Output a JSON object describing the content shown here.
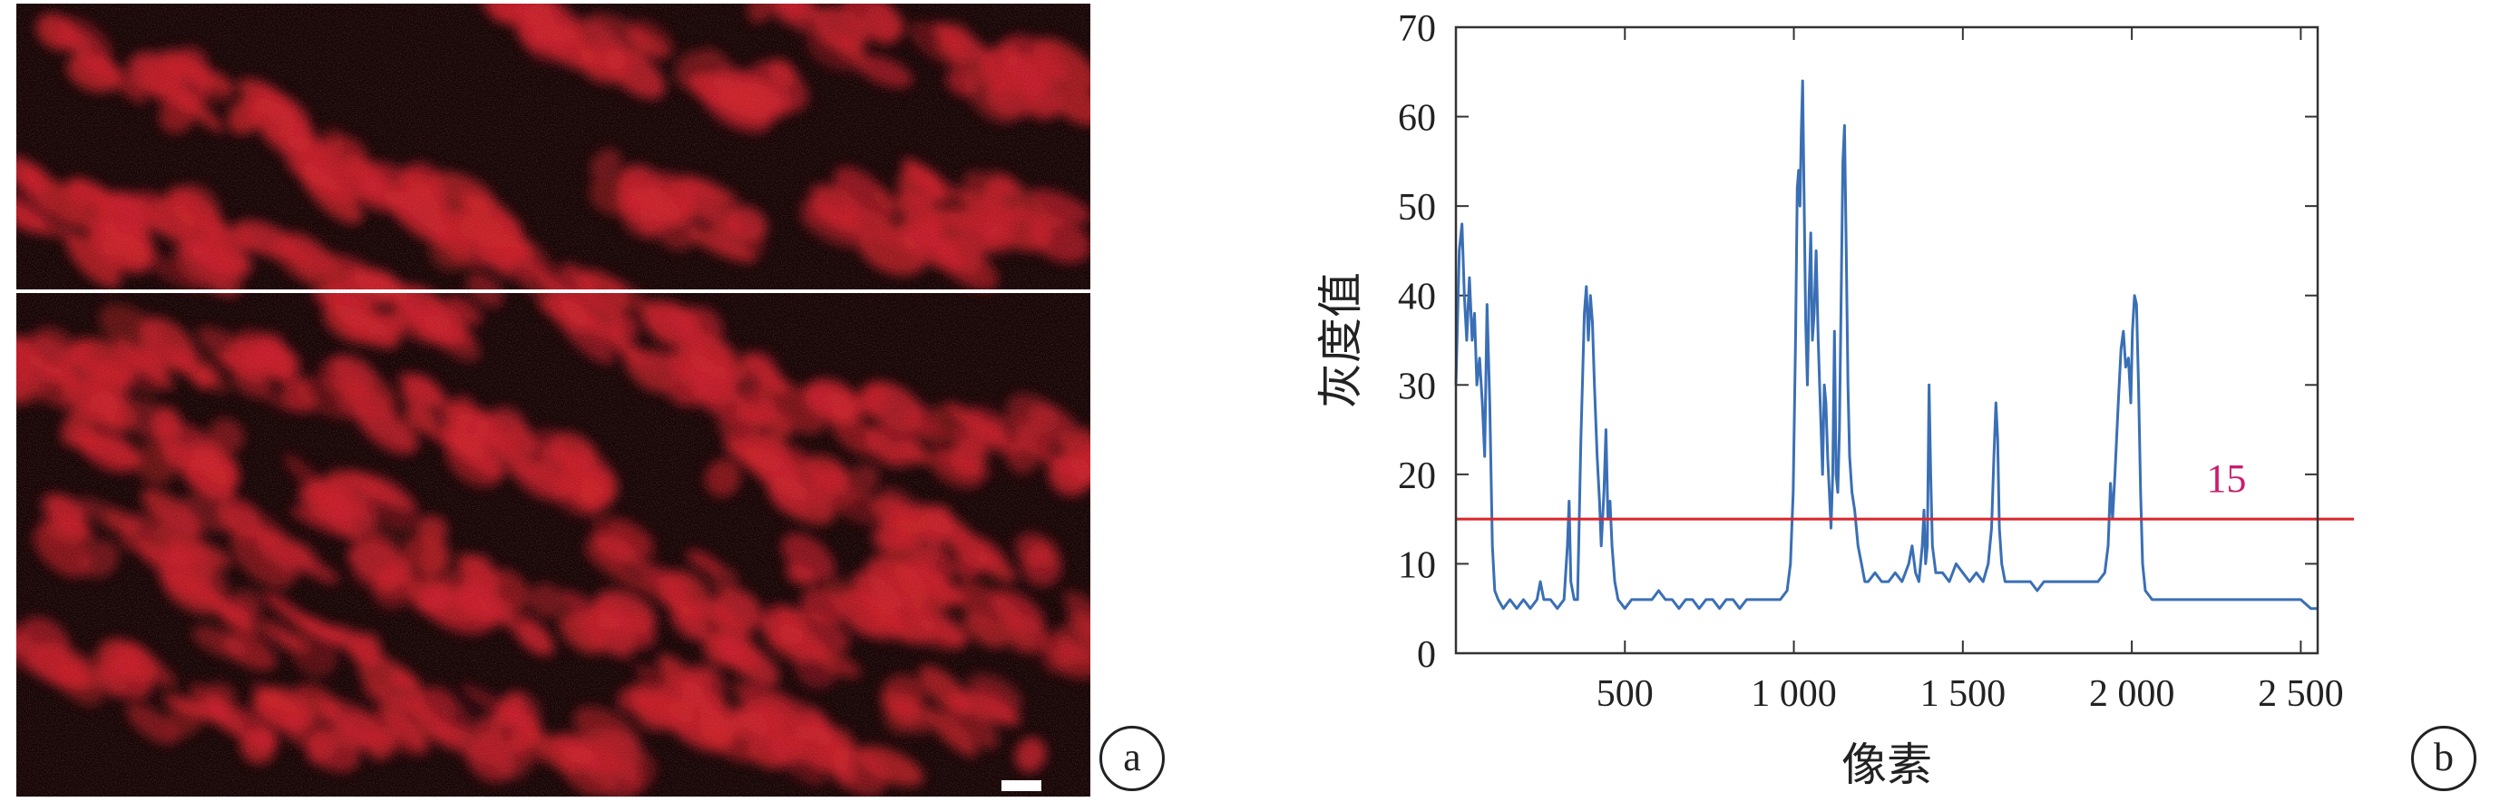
{
  "panel_a": {
    "label": "a",
    "colors": {
      "background": "#140606",
      "stain": "#c8202a",
      "divider": "#ffffff",
      "scale_bar": "#ffffff"
    }
  },
  "chart_data": {
    "type": "line",
    "panel_label": "b",
    "xlabel": "像素",
    "ylabel": "灰度值",
    "xlim": [
      0,
      2550
    ],
    "ylim": [
      0,
      70
    ],
    "x_ticks": [
      500,
      1000,
      1500,
      2000,
      2500
    ],
    "x_tick_labels": [
      "500",
      "1 000",
      "1 500",
      "2 000",
      "2 500"
    ],
    "y_ticks": [
      0,
      10,
      20,
      30,
      40,
      50,
      60,
      70
    ],
    "y_tick_labels": [
      "0",
      "10",
      "20",
      "30",
      "40",
      "50",
      "60",
      "70"
    ],
    "grid": false,
    "threshold": {
      "value": 15,
      "label": "15",
      "line_color": "#d9262b",
      "label_color": "#c81e6e"
    },
    "series": [
      {
        "color": "#3a6fb5",
        "points": [
          [
            0,
            30
          ],
          [
            10,
            45
          ],
          [
            18,
            48
          ],
          [
            25,
            40
          ],
          [
            32,
            35
          ],
          [
            40,
            42
          ],
          [
            48,
            35
          ],
          [
            55,
            38
          ],
          [
            62,
            30
          ],
          [
            70,
            33
          ],
          [
            78,
            28
          ],
          [
            85,
            22
          ],
          [
            92,
            39
          ],
          [
            100,
            28
          ],
          [
            108,
            12
          ],
          [
            115,
            7
          ],
          [
            125,
            6
          ],
          [
            140,
            5
          ],
          [
            160,
            6
          ],
          [
            180,
            5
          ],
          [
            200,
            6
          ],
          [
            220,
            5
          ],
          [
            240,
            6
          ],
          [
            250,
            8
          ],
          [
            260,
            6
          ],
          [
            280,
            6
          ],
          [
            300,
            5
          ],
          [
            320,
            6
          ],
          [
            330,
            12
          ],
          [
            335,
            17
          ],
          [
            340,
            8
          ],
          [
            350,
            6
          ],
          [
            360,
            6
          ],
          [
            370,
            24
          ],
          [
            380,
            38
          ],
          [
            386,
            41
          ],
          [
            392,
            35
          ],
          [
            398,
            40
          ],
          [
            404,
            37
          ],
          [
            410,
            30
          ],
          [
            418,
            22
          ],
          [
            425,
            17
          ],
          [
            430,
            12
          ],
          [
            438,
            18
          ],
          [
            444,
            25
          ],
          [
            450,
            15
          ],
          [
            456,
            17
          ],
          [
            462,
            12
          ],
          [
            470,
            8
          ],
          [
            480,
            6
          ],
          [
            500,
            5
          ],
          [
            520,
            6
          ],
          [
            540,
            6
          ],
          [
            560,
            6
          ],
          [
            580,
            6
          ],
          [
            600,
            7
          ],
          [
            620,
            6
          ],
          [
            640,
            6
          ],
          [
            660,
            5
          ],
          [
            680,
            6
          ],
          [
            700,
            6
          ],
          [
            720,
            5
          ],
          [
            740,
            6
          ],
          [
            760,
            6
          ],
          [
            780,
            5
          ],
          [
            800,
            6
          ],
          [
            820,
            6
          ],
          [
            840,
            5
          ],
          [
            860,
            6
          ],
          [
            880,
            6
          ],
          [
            900,
            6
          ],
          [
            920,
            6
          ],
          [
            940,
            6
          ],
          [
            960,
            6
          ],
          [
            980,
            7
          ],
          [
            990,
            10
          ],
          [
            998,
            18
          ],
          [
            1005,
            35
          ],
          [
            1010,
            52
          ],
          [
            1014,
            54
          ],
          [
            1018,
            50
          ],
          [
            1022,
            58
          ],
          [
            1026,
            64
          ],
          [
            1030,
            52
          ],
          [
            1035,
            37
          ],
          [
            1040,
            30
          ],
          [
            1045,
            40
          ],
          [
            1050,
            47
          ],
          [
            1055,
            35
          ],
          [
            1060,
            38
          ],
          [
            1066,
            45
          ],
          [
            1072,
            35
          ],
          [
            1078,
            28
          ],
          [
            1085,
            20
          ],
          [
            1090,
            30
          ],
          [
            1095,
            28
          ],
          [
            1100,
            22
          ],
          [
            1105,
            18
          ],
          [
            1110,
            14
          ],
          [
            1115,
            20
          ],
          [
            1120,
            36
          ],
          [
            1125,
            20
          ],
          [
            1130,
            18
          ],
          [
            1135,
            25
          ],
          [
            1140,
            40
          ],
          [
            1145,
            55
          ],
          [
            1150,
            59
          ],
          [
            1155,
            45
          ],
          [
            1160,
            30
          ],
          [
            1165,
            22
          ],
          [
            1172,
            18
          ],
          [
            1180,
            16
          ],
          [
            1190,
            12
          ],
          [
            1200,
            10
          ],
          [
            1210,
            8
          ],
          [
            1220,
            8
          ],
          [
            1240,
            9
          ],
          [
            1260,
            8
          ],
          [
            1280,
            8
          ],
          [
            1300,
            9
          ],
          [
            1320,
            8
          ],
          [
            1340,
            10
          ],
          [
            1350,
            12
          ],
          [
            1360,
            9
          ],
          [
            1370,
            8
          ],
          [
            1380,
            12
          ],
          [
            1385,
            16
          ],
          [
            1390,
            10
          ],
          [
            1395,
            12
          ],
          [
            1400,
            30
          ],
          [
            1405,
            20
          ],
          [
            1410,
            12
          ],
          [
            1420,
            9
          ],
          [
            1440,
            9
          ],
          [
            1460,
            8
          ],
          [
            1480,
            10
          ],
          [
            1500,
            9
          ],
          [
            1520,
            8
          ],
          [
            1540,
            9
          ],
          [
            1560,
            8
          ],
          [
            1575,
            10
          ],
          [
            1585,
            14
          ],
          [
            1592,
            22
          ],
          [
            1598,
            28
          ],
          [
            1603,
            24
          ],
          [
            1608,
            14
          ],
          [
            1615,
            10
          ],
          [
            1625,
            8
          ],
          [
            1640,
            8
          ],
          [
            1660,
            8
          ],
          [
            1680,
            8
          ],
          [
            1700,
            8
          ],
          [
            1720,
            7
          ],
          [
            1740,
            8
          ],
          [
            1760,
            8
          ],
          [
            1780,
            8
          ],
          [
            1800,
            8
          ],
          [
            1820,
            8
          ],
          [
            1840,
            8
          ],
          [
            1860,
            8
          ],
          [
            1880,
            8
          ],
          [
            1900,
            8
          ],
          [
            1920,
            9
          ],
          [
            1930,
            12
          ],
          [
            1937,
            19
          ],
          [
            1943,
            15
          ],
          [
            1950,
            20
          ],
          [
            1960,
            28
          ],
          [
            1968,
            34
          ],
          [
            1975,
            36
          ],
          [
            1982,
            32
          ],
          [
            1990,
            33
          ],
          [
            1997,
            28
          ],
          [
            2002,
            36
          ],
          [
            2008,
            40
          ],
          [
            2014,
            39
          ],
          [
            2020,
            30
          ],
          [
            2026,
            18
          ],
          [
            2032,
            10
          ],
          [
            2040,
            7
          ],
          [
            2060,
            6
          ],
          [
            2080,
            6
          ],
          [
            2100,
            6
          ],
          [
            2150,
            6
          ],
          [
            2200,
            6
          ],
          [
            2250,
            6
          ],
          [
            2300,
            6
          ],
          [
            2350,
            6
          ],
          [
            2400,
            6
          ],
          [
            2450,
            6
          ],
          [
            2500,
            6
          ],
          [
            2530,
            5
          ],
          [
            2550,
            5
          ]
        ]
      }
    ]
  }
}
